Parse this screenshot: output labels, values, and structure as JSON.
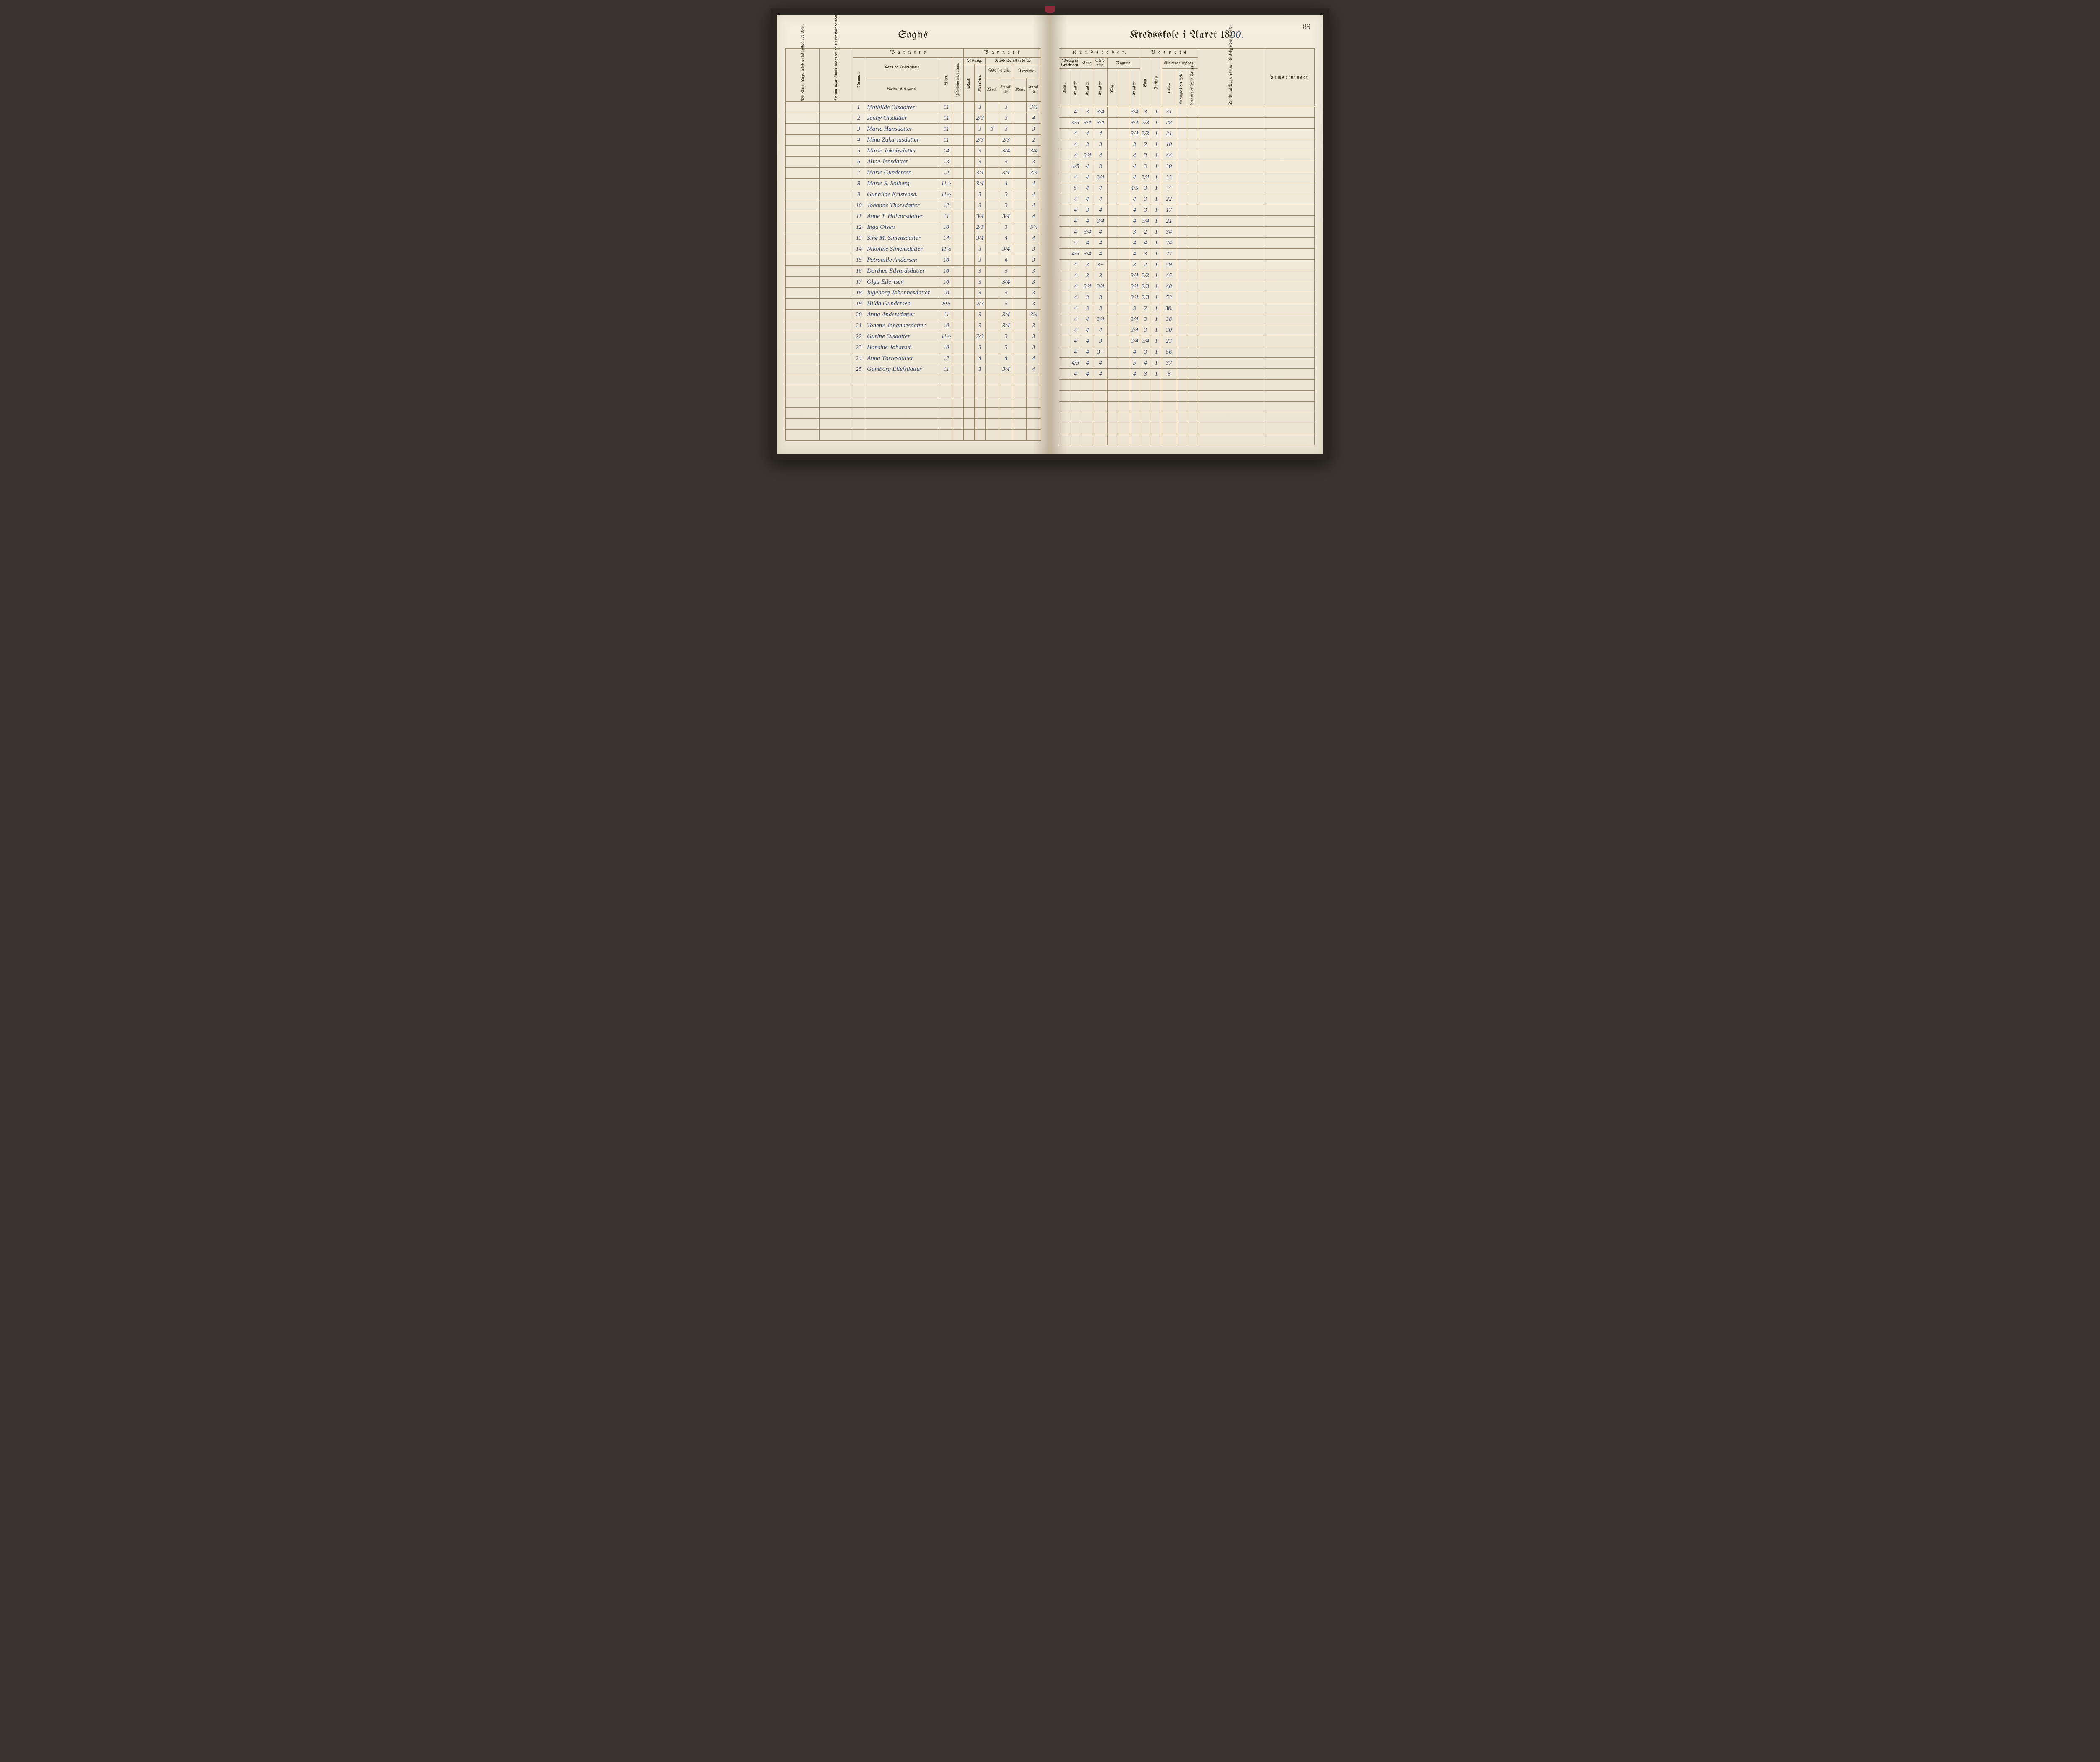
{
  "pageNumber": "89",
  "titleLeft": "Sogns",
  "titleRightPrefix": "Kredsskole i Aaret 18",
  "titleRightYear": "80.",
  "headersLeft": {
    "barnets": "B a r n e t s",
    "navn": "Navn og Opholdssted.",
    "navnSub": "(Anføres afdelingsvis).",
    "nummer": "Nummer.",
    "alder": "Alder.",
    "indskr": "Indskrivelsesdatum.",
    "laesning": "Læsning.",
    "kristendom": "Kristendomskundskab.",
    "bibel": "Bibelhistorie.",
    "troes": "Troeslære.",
    "maal": "Maal.",
    "karakter": "Karak-ter.",
    "antalDage": "Det Antal Dage, Skolen skal holdes i Kredsen.",
    "datum": "Datum, naar Skolen begynder og slutter hver Omgang."
  },
  "headersRight": {
    "kundskaber": "K u n d s k a b e r.",
    "barnets": "B a r n e t s",
    "udvalg": "Udvalg af Læsebogen.",
    "sang": "Sang.",
    "skriv": "Skriv-ning.",
    "regning": "Regning.",
    "skoledage": "Skolesøgningsdage.",
    "maal": "Maal.",
    "karakter": "Karakter.",
    "evne": "Evne.",
    "forhold": "Forhold.",
    "modte": "mødte.",
    "forsHele": "forsømte i det Hele.",
    "forsLovlig": "forsømte af lovlig Grund.",
    "antalDage": "Det Antal Dage, Skolen i Virkeligheden er holdt.",
    "anm": "A n m æ r k n i n g e r."
  },
  "rows": [
    {
      "n": "1",
      "name": "Mathilde Olsdatter",
      "age": "11",
      "l1": "",
      "l2": "3",
      "b1": "",
      "b2": "3",
      "t1": "",
      "t2": "3/4",
      "u1": "",
      "u2": "4",
      "sa": "3",
      "sk": "3/4",
      "r1": "",
      "r2": "3/4",
      "ev": "3",
      "fo": "1",
      "mo": "31",
      "f1": "",
      "f2": ""
    },
    {
      "n": "2",
      "name": "Jenny Olsdatter",
      "age": "11",
      "l1": "",
      "l2": "2/3",
      "b1": "",
      "b2": "3",
      "t1": "",
      "t2": "4",
      "u1": "",
      "u2": "4/5",
      "sa": "3/4",
      "sk": "3/4",
      "r1": "",
      "r2": "3/4",
      "ev": "2/3",
      "fo": "1",
      "mo": "28",
      "f1": "",
      "f2": ""
    },
    {
      "n": "3",
      "name": "Marie Hansdatter",
      "age": "11",
      "l1": "",
      "l2": "3",
      "b1": "3",
      "b2": "3",
      "t1": "",
      "t2": "3",
      "u1": "",
      "u2": "4",
      "sa": "4",
      "sk": "4",
      "r1": "",
      "r2": "3/4",
      "ev": "2/3",
      "fo": "1",
      "mo": "21",
      "f1": "",
      "f2": ""
    },
    {
      "n": "4",
      "name": "Mina Zakariasdatter",
      "age": "11",
      "l1": "",
      "l2": "2/3",
      "b1": "",
      "b2": "2/3",
      "t1": "",
      "t2": "2",
      "u1": "",
      "u2": "4",
      "sa": "3",
      "sk": "3",
      "r1": "",
      "r2": "3",
      "ev": "2",
      "fo": "1",
      "mo": "10",
      "f1": "",
      "f2": ""
    },
    {
      "n": "5",
      "name": "Marie Jakobsdatter",
      "age": "14",
      "l1": "",
      "l2": "3",
      "b1": "",
      "b2": "3/4",
      "t1": "",
      "t2": "3/4",
      "u1": "",
      "u2": "4",
      "sa": "3/4",
      "sk": "4",
      "r1": "",
      "r2": "4",
      "ev": "3",
      "fo": "1",
      "mo": "44",
      "f1": "",
      "f2": ""
    },
    {
      "n": "6",
      "name": "Aline Jensdatter",
      "age": "13",
      "l1": "",
      "l2": "3",
      "b1": "",
      "b2": "3",
      "t1": "",
      "t2": "3",
      "u1": "",
      "u2": "4/5",
      "sa": "4",
      "sk": "3",
      "r1": "",
      "r2": "4",
      "ev": "3",
      "fo": "1",
      "mo": "30",
      "f1": "",
      "f2": ""
    },
    {
      "n": "7",
      "name": "Marie Gundersen",
      "age": "12",
      "l1": "",
      "l2": "3/4",
      "b1": "",
      "b2": "3/4",
      "t1": "",
      "t2": "3/4",
      "u1": "",
      "u2": "4",
      "sa": "4",
      "sk": "3/4",
      "r1": "",
      "r2": "4",
      "ev": "3/4",
      "fo": "1",
      "mo": "33",
      "f1": "",
      "f2": ""
    },
    {
      "n": "8",
      "name": "Marie S. Solberg",
      "age": "11½",
      "l1": "",
      "l2": "3/4",
      "b1": "",
      "b2": "4",
      "t1": "",
      "t2": "4",
      "u1": "",
      "u2": "5",
      "sa": "4",
      "sk": "4",
      "r1": "",
      "r2": "4/5",
      "ev": "3",
      "fo": "1",
      "mo": "7",
      "f1": "",
      "f2": ""
    },
    {
      "n": "9",
      "name": "Gunhilde Kristensd.",
      "age": "11½",
      "l1": "",
      "l2": "3",
      "b1": "",
      "b2": "3",
      "t1": "",
      "t2": "4",
      "u1": "",
      "u2": "4",
      "sa": "4",
      "sk": "4",
      "r1": "",
      "r2": "4",
      "ev": "3",
      "fo": "1",
      "mo": "22",
      "f1": "",
      "f2": ""
    },
    {
      "n": "10",
      "name": "Johanne Thorsdatter",
      "age": "12",
      "l1": "",
      "l2": "3",
      "b1": "",
      "b2": "3",
      "t1": "",
      "t2": "4",
      "u1": "",
      "u2": "4",
      "sa": "3",
      "sk": "4",
      "r1": "",
      "r2": "4",
      "ev": "3",
      "fo": "1",
      "mo": "17",
      "f1": "",
      "f2": ""
    },
    {
      "n": "11",
      "name": "Anne T. Halvorsdatter",
      "age": "11",
      "l1": "",
      "l2": "3/4",
      "b1": "",
      "b2": "3/4",
      "t1": "",
      "t2": "4",
      "u1": "",
      "u2": "4",
      "sa": "4",
      "sk": "3/4",
      "r1": "",
      "r2": "4",
      "ev": "3/4",
      "fo": "1",
      "mo": "21",
      "f1": "",
      "f2": ""
    },
    {
      "n": "12",
      "name": "Inga Olsen",
      "age": "10",
      "l1": "",
      "l2": "2/3",
      "b1": "",
      "b2": "3",
      "t1": "",
      "t2": "3/4",
      "u1": "",
      "u2": "4",
      "sa": "3/4",
      "sk": "4",
      "r1": "",
      "r2": "3",
      "ev": "2",
      "fo": "1",
      "mo": "34",
      "f1": "",
      "f2": ""
    },
    {
      "n": "13",
      "name": "Sine M. Simensdatter",
      "age": "14",
      "l1": "",
      "l2": "3/4",
      "b1": "",
      "b2": "4",
      "t1": "",
      "t2": "4",
      "u1": "",
      "u2": "5",
      "sa": "4",
      "sk": "4",
      "r1": "",
      "r2": "4",
      "ev": "4",
      "fo": "1",
      "mo": "24",
      "f1": "",
      "f2": ""
    },
    {
      "n": "14",
      "name": "Nikoline Simensdatter",
      "age": "11½",
      "l1": "",
      "l2": "3",
      "b1": "",
      "b2": "3/4",
      "t1": "",
      "t2": "3",
      "u1": "",
      "u2": "4/5",
      "sa": "3/4",
      "sk": "4",
      "r1": "",
      "r2": "4",
      "ev": "3",
      "fo": "1",
      "mo": "27",
      "f1": "",
      "f2": ""
    },
    {
      "n": "15",
      "name": "Petronille Andersen",
      "age": "10",
      "l1": "",
      "l2": "3",
      "b1": "",
      "b2": "4",
      "t1": "",
      "t2": "3",
      "u1": "",
      "u2": "4",
      "sa": "3",
      "sk": "3+",
      "r1": "",
      "r2": "3",
      "ev": "2",
      "fo": "1",
      "mo": "59",
      "f1": "",
      "f2": ""
    },
    {
      "n": "16",
      "name": "Dorthee Edvardsdatter",
      "age": "10",
      "l1": "",
      "l2": "3",
      "b1": "",
      "b2": "3",
      "t1": "",
      "t2": "3",
      "u1": "",
      "u2": "4",
      "sa": "3",
      "sk": "3",
      "r1": "",
      "r2": "3/4",
      "ev": "2/3",
      "fo": "1",
      "mo": "45",
      "f1": "",
      "f2": ""
    },
    {
      "n": "17",
      "name": "Olga Eilertsen",
      "age": "10",
      "l1": "",
      "l2": "3",
      "b1": "",
      "b2": "3/4",
      "t1": "",
      "t2": "3",
      "u1": "",
      "u2": "4",
      "sa": "3/4",
      "sk": "3/4",
      "r1": "",
      "r2": "3/4",
      "ev": "2/3",
      "fo": "1",
      "mo": "48",
      "f1": "",
      "f2": ""
    },
    {
      "n": "18",
      "name": "Ingeborg Johannesdatter",
      "age": "10",
      "l1": "",
      "l2": "3",
      "b1": "",
      "b2": "3",
      "t1": "",
      "t2": "3",
      "u1": "",
      "u2": "4",
      "sa": "3",
      "sk": "3",
      "r1": "",
      "r2": "3/4",
      "ev": "2/3",
      "fo": "1",
      "mo": "53",
      "f1": "",
      "f2": ""
    },
    {
      "n": "19",
      "name": "Hilda Gundersen",
      "age": "8½",
      "l1": "",
      "l2": "2/3",
      "b1": "",
      "b2": "3",
      "t1": "",
      "t2": "3",
      "u1": "",
      "u2": "4",
      "sa": "3",
      "sk": "3",
      "r1": "",
      "r2": "3",
      "ev": "2",
      "fo": "1",
      "mo": "36.",
      "f1": "",
      "f2": ""
    },
    {
      "n": "20",
      "name": "Anna Andersdatter",
      "age": "11",
      "l1": "",
      "l2": "3",
      "b1": "",
      "b2": "3/4",
      "t1": "",
      "t2": "3/4",
      "u1": "",
      "u2": "4",
      "sa": "4",
      "sk": "3/4",
      "r1": "",
      "r2": "3/4",
      "ev": "3",
      "fo": "1",
      "mo": "38",
      "f1": "",
      "f2": ""
    },
    {
      "n": "21",
      "name": "Tonette Johannesdatter",
      "age": "10",
      "l1": "",
      "l2": "3",
      "b1": "",
      "b2": "3/4",
      "t1": "",
      "t2": "3",
      "u1": "",
      "u2": "4",
      "sa": "4",
      "sk": "4",
      "r1": "",
      "r2": "3/4",
      "ev": "3",
      "fo": "1",
      "mo": "30",
      "f1": "",
      "f2": ""
    },
    {
      "n": "22",
      "name": "Gurine Olsdatter",
      "age": "11½",
      "l1": "",
      "l2": "2/3",
      "b1": "",
      "b2": "3",
      "t1": "",
      "t2": "3",
      "u1": "",
      "u2": "4",
      "sa": "4",
      "sk": "3",
      "r1": "",
      "r2": "3/4",
      "ev": "3/4",
      "fo": "1",
      "mo": "23",
      "f1": "",
      "f2": ""
    },
    {
      "n": "23",
      "name": "Hansine Johansd.",
      "age": "10",
      "l1": "",
      "l2": "3",
      "b1": "",
      "b2": "3",
      "t1": "",
      "t2": "3",
      "u1": "",
      "u2": "4",
      "sa": "4",
      "sk": "3+",
      "r1": "",
      "r2": "4",
      "ev": "3",
      "fo": "1",
      "mo": "56",
      "f1": "",
      "f2": ""
    },
    {
      "n": "24",
      "name": "Anna Tørresdatter",
      "age": "12",
      "l1": "",
      "l2": "4",
      "b1": "",
      "b2": "4",
      "t1": "",
      "t2": "4",
      "u1": "",
      "u2": "4/5",
      "sa": "4",
      "sk": "4",
      "r1": "",
      "r2": "5",
      "ev": "4",
      "fo": "1",
      "mo": "37",
      "f1": "",
      "f2": ""
    },
    {
      "n": "25",
      "name": "Gumborg Ellefsdatter",
      "age": "11",
      "l1": "",
      "l2": "3",
      "b1": "",
      "b2": "3/4",
      "t1": "",
      "t2": "4",
      "u1": "",
      "u2": "4",
      "sa": "4",
      "sk": "4",
      "r1": "",
      "r2": "4",
      "ev": "3",
      "fo": "1",
      "mo": "8",
      "f1": "",
      "f2": ""
    }
  ]
}
